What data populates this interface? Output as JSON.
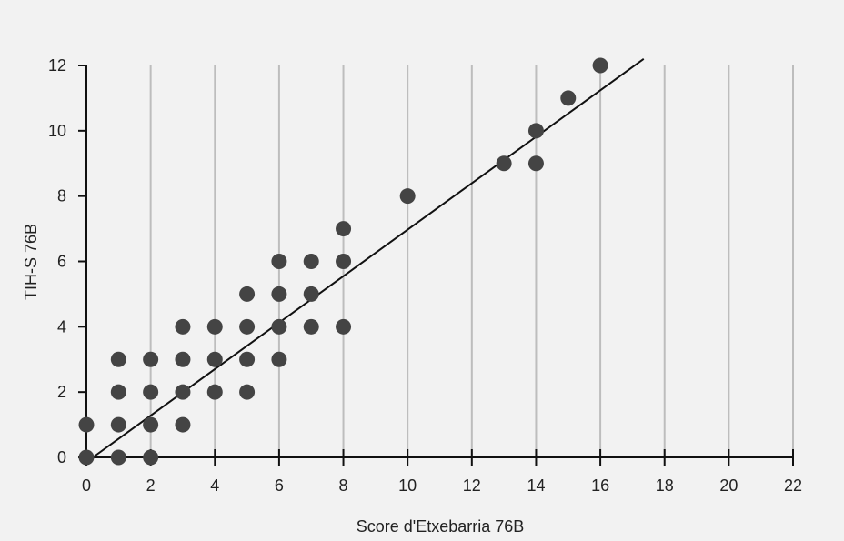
{
  "chart_data": {
    "type": "scatter",
    "xlabel": "Score d'Etxebarria 76B",
    "ylabel": "TIH-S 76B",
    "xlim": [
      0,
      22
    ],
    "ylim": [
      0,
      12
    ],
    "x_ticks": [
      "0",
      "2",
      "4",
      "6",
      "8",
      "10",
      "12",
      "14",
      "16",
      "18",
      "20",
      "22"
    ],
    "y_ticks": [
      "0",
      "2",
      "4",
      "6",
      "8",
      "10",
      "12"
    ],
    "grid": "vertical",
    "points": [
      {
        "x": 0,
        "y": 0
      },
      {
        "x": 0,
        "y": 1
      },
      {
        "x": 1,
        "y": 0
      },
      {
        "x": 1,
        "y": 1
      },
      {
        "x": 1,
        "y": 2
      },
      {
        "x": 1,
        "y": 3
      },
      {
        "x": 2,
        "y": 0
      },
      {
        "x": 2,
        "y": 1
      },
      {
        "x": 2,
        "y": 2
      },
      {
        "x": 2,
        "y": 3
      },
      {
        "x": 3,
        "y": 1
      },
      {
        "x": 3,
        "y": 2
      },
      {
        "x": 3,
        "y": 3
      },
      {
        "x": 3,
        "y": 4
      },
      {
        "x": 4,
        "y": 2
      },
      {
        "x": 4,
        "y": 3
      },
      {
        "x": 4,
        "y": 4
      },
      {
        "x": 5,
        "y": 2
      },
      {
        "x": 5,
        "y": 3
      },
      {
        "x": 5,
        "y": 4
      },
      {
        "x": 5,
        "y": 5
      },
      {
        "x": 6,
        "y": 3
      },
      {
        "x": 6,
        "y": 4
      },
      {
        "x": 6,
        "y": 5
      },
      {
        "x": 6,
        "y": 6
      },
      {
        "x": 7,
        "y": 4
      },
      {
        "x": 7,
        "y": 5
      },
      {
        "x": 7,
        "y": 6
      },
      {
        "x": 8,
        "y": 4
      },
      {
        "x": 8,
        "y": 6
      },
      {
        "x": 8,
        "y": 7
      },
      {
        "x": 10,
        "y": 8
      },
      {
        "x": 13,
        "y": 9
      },
      {
        "x": 14,
        "y": 9
      },
      {
        "x": 14,
        "y": 10
      },
      {
        "x": 15,
        "y": 11
      },
      {
        "x": 16,
        "y": 12
      }
    ],
    "trendline": {
      "x": [
        0.2,
        17.35
      ],
      "y": [
        0.0,
        12.2
      ]
    },
    "colors": {
      "points": "#444444",
      "trendline": "#111111",
      "grid": "#bdbdbd",
      "background": "#f2f2f2"
    }
  }
}
